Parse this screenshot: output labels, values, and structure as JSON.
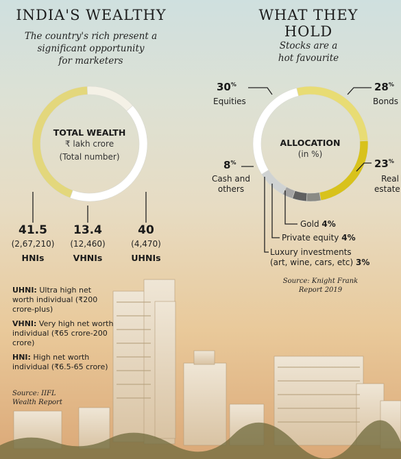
{
  "left": {
    "title": "INDIA'S WEALTHY",
    "subtitle_lines": [
      "The country's rich present a",
      "significant opportunity",
      "for marketers"
    ],
    "center_title": "TOTAL WEALTH",
    "center_sub_1": "₹ lakh crore",
    "center_sub_2": "(Total number)",
    "notes": [
      {
        "term": "UHNI:",
        "text": " Ultra high net worth individual (₹200 crore-plus)"
      },
      {
        "term": "VHNI:",
        "text": " Very high net worth individual (₹65 crore-200 crore)"
      },
      {
        "term": "HNI:",
        "text": " High net worth individual (₹6.5-65 crore)"
      }
    ],
    "source_1": "Source: IIFL",
    "source_2": "Wealth Report"
  },
  "chart_data": [
    {
      "type": "pie",
      "title": "TOTAL WEALTH",
      "subtitle": "₹ lakh crore (Total number)",
      "categories": [
        "HNIs",
        "VHNIs",
        "UHNIs"
      ],
      "values": [
        41.5,
        13.4,
        40
      ],
      "counts": [
        "(2,67,210)",
        "(12,460)",
        "(4,470)"
      ],
      "colors": [
        "#e3d77c",
        "#f4f1e6",
        "#ffffff"
      ]
    },
    {
      "type": "pie",
      "title": "ALLOCATION",
      "subtitle": "(in %)",
      "categories": [
        "Equities",
        "Bonds",
        "Real estate",
        "Gold",
        "Private equity",
        "Luxury investments (art, wine, cars, etc)",
        "Cash and others"
      ],
      "values": [
        30,
        28,
        23,
        4,
        4,
        3,
        8
      ],
      "colors": [
        "#ffffff",
        "#e8dc74",
        "#d8c21c",
        "#8a8a85",
        "#606060",
        "#a3a3a3",
        "#cfd2d2"
      ]
    }
  ],
  "right": {
    "title_1": "WHAT THEY",
    "title_2": "HOLD",
    "subtitle_1": "Stocks are a",
    "subtitle_2": "hot favourite",
    "center_title": "ALLOCATION",
    "center_sub": "(in %)",
    "pct_equities": "30",
    "pct_bonds": "28",
    "pct_real": "23",
    "pct_cash": "8",
    "pct_sign": "%",
    "label_equities": "Equities",
    "label_bonds": "Bonds",
    "label_real_1": "Real",
    "label_real_2": "estate",
    "label_cash_1": "Cash and",
    "label_cash_2": "others",
    "label_gold": "Gold",
    "label_gold_pct": "4%",
    "label_pe": "Private equity",
    "label_pe_pct": "4%",
    "label_lux_1": "Luxury investments",
    "label_lux_2": "(art, wine, cars, etc)",
    "label_lux_pct": "3%",
    "source_1": "Source: Knight Frank",
    "source_2": "Report 2019"
  }
}
